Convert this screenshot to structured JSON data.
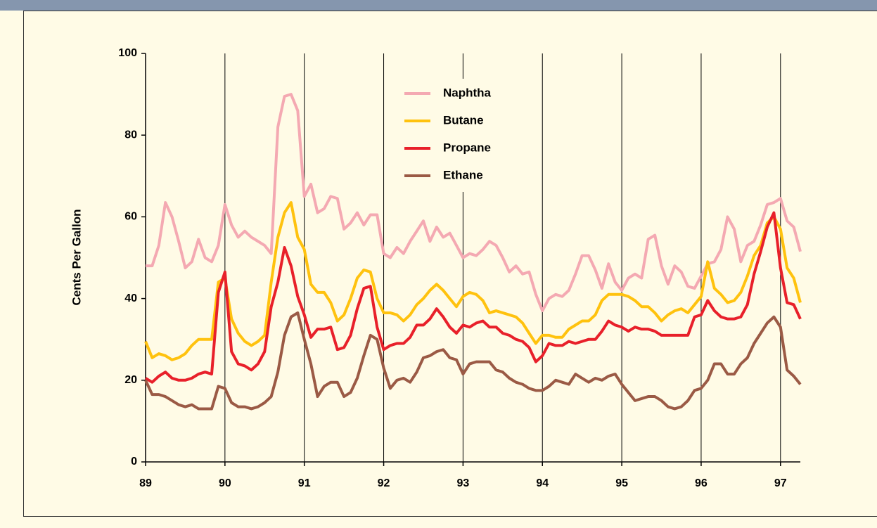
{
  "chart_data": {
    "type": "line",
    "y_label": "Cents Per Gallon",
    "x": [
      89,
      89.083,
      89.167,
      89.25,
      89.333,
      89.417,
      89.5,
      89.583,
      89.667,
      89.75,
      89.833,
      89.917,
      90,
      90.083,
      90.167,
      90.25,
      90.333,
      90.417,
      90.5,
      90.583,
      90.667,
      90.75,
      90.833,
      90.917,
      91,
      91.083,
      91.167,
      91.25,
      91.333,
      91.417,
      91.5,
      91.583,
      91.667,
      91.75,
      91.833,
      91.917,
      92,
      92.083,
      92.167,
      92.25,
      92.333,
      92.417,
      92.5,
      92.583,
      92.667,
      92.75,
      92.833,
      92.917,
      93,
      93.083,
      93.167,
      93.25,
      93.333,
      93.417,
      93.5,
      93.583,
      93.667,
      93.75,
      93.833,
      93.917,
      94,
      94.083,
      94.167,
      94.25,
      94.333,
      94.417,
      94.5,
      94.583,
      94.667,
      94.75,
      94.833,
      94.917,
      95,
      95.083,
      95.167,
      95.25,
      95.333,
      95.417,
      95.5,
      95.583,
      95.667,
      95.75,
      95.833,
      95.917,
      96,
      96.083,
      96.167,
      96.25,
      96.333,
      96.417,
      96.5,
      96.583,
      96.667,
      96.75,
      96.833,
      96.917,
      97,
      97.083,
      97.167,
      97.25
    ],
    "series": [
      {
        "name": "Naphtha",
        "color": "#f4a9b2",
        "values": [
          48,
          48,
          53,
          63.5,
          60,
          54,
          47.5,
          49,
          54.5,
          50,
          49,
          53,
          63,
          58,
          55,
          56.5,
          55,
          54,
          53,
          51,
          82,
          89.5,
          90,
          86,
          65,
          68,
          61,
          62,
          65,
          64.5,
          57,
          58.5,
          61,
          58,
          60.5,
          60.5,
          51,
          50,
          52.5,
          51,
          54,
          56.5,
          59,
          54,
          57.5,
          55,
          56,
          53,
          50,
          51,
          50.5,
          52,
          54,
          53,
          50,
          46.5,
          48,
          46,
          46.5,
          41,
          37,
          40,
          41,
          40.5,
          42,
          46,
          50.5,
          50.5,
          47,
          42.5,
          48.5,
          44,
          42,
          45,
          46,
          45,
          54.5,
          55.5,
          48,
          43.5,
          48,
          46.5,
          43,
          42.5,
          45.5,
          48.5,
          49,
          52,
          60,
          57,
          49,
          53,
          54,
          58,
          63,
          63.5,
          64.5,
          59,
          57.5,
          51.5
        ]
      },
      {
        "name": "Butane",
        "color": "#ffc20e",
        "values": [
          29.5,
          25.5,
          26.5,
          26,
          25,
          25.5,
          26.5,
          28.5,
          30,
          30,
          30,
          44,
          45,
          35,
          31.5,
          29.5,
          28.5,
          29.5,
          31,
          44,
          55,
          61,
          63.5,
          55,
          52,
          43.5,
          41.5,
          41.5,
          39,
          34.5,
          36,
          40,
          45,
          47,
          46.5,
          40,
          36.5,
          36.5,
          36,
          34.5,
          36,
          38.5,
          40,
          42,
          43.5,
          42,
          40,
          38,
          40.5,
          41.5,
          41,
          39.5,
          36.5,
          37,
          36.5,
          36,
          35.5,
          34,
          31.5,
          29,
          31,
          31,
          30.5,
          30.5,
          32.5,
          33.5,
          34.5,
          34.5,
          36,
          39.5,
          41,
          41,
          41,
          40.5,
          39.5,
          38,
          38,
          36.5,
          34.5,
          36,
          37,
          37.5,
          36.5,
          38.5,
          40.5,
          49,
          42.5,
          41,
          39,
          39.5,
          41.5,
          45.5,
          50.5,
          53,
          58.5,
          60,
          57,
          47.5,
          45,
          39
        ]
      },
      {
        "name": "Propane",
        "color": "#e8202a",
        "values": [
          20.5,
          19.5,
          21,
          22,
          20.5,
          20,
          20,
          20.5,
          21.5,
          22,
          21.5,
          41.5,
          46.5,
          27,
          24,
          23.5,
          22.5,
          24,
          27,
          38,
          44,
          52.5,
          48,
          40.5,
          36,
          30.5,
          32.5,
          32.5,
          33,
          27.5,
          28,
          31,
          37.5,
          42.5,
          43,
          33,
          27.5,
          28.5,
          29,
          29,
          30.5,
          33.5,
          33.5,
          35,
          37.5,
          35.5,
          33,
          31.5,
          33.5,
          33,
          34,
          34.5,
          33,
          33,
          31.5,
          31,
          30,
          29.5,
          28,
          24.5,
          26,
          29,
          28.5,
          28.5,
          29.5,
          29,
          29.5,
          30,
          30,
          32,
          34.5,
          33.5,
          33,
          32,
          33,
          32.5,
          32.5,
          32,
          31,
          31,
          31,
          31,
          31,
          35.5,
          36,
          39.5,
          37,
          35.5,
          35,
          35,
          35.5,
          38.5,
          46,
          51.5,
          57.5,
          61,
          47.5,
          39,
          38.5,
          35
        ]
      },
      {
        "name": "Ethane",
        "color": "#9b5a45",
        "values": [
          20,
          16.5,
          16.5,
          16,
          15,
          14,
          13.5,
          14,
          13,
          13,
          13,
          18.5,
          18,
          14.5,
          13.5,
          13.5,
          13,
          13.5,
          14.5,
          16,
          22,
          31,
          35.5,
          36.5,
          30,
          24,
          16,
          18.5,
          19.5,
          19.5,
          16,
          17,
          20.5,
          26,
          31,
          30,
          23,
          18,
          20,
          20.5,
          19.5,
          22,
          25.5,
          26,
          27,
          27.5,
          25.5,
          25,
          21.5,
          24,
          24.5,
          24.5,
          24.5,
          22.5,
          22,
          20.5,
          19.5,
          19,
          18,
          17.5,
          17.5,
          18.5,
          20,
          19.5,
          19,
          21.5,
          20.5,
          19.5,
          20.5,
          20,
          21,
          21.5,
          19,
          17,
          15,
          15.5,
          16,
          16,
          15,
          13.5,
          13,
          13.5,
          15,
          17.5,
          18,
          20,
          24,
          24,
          21.5,
          21.5,
          24,
          25.5,
          29,
          31.5,
          34,
          35.5,
          33,
          22.5,
          21,
          19
        ]
      }
    ],
    "xlim": [
      89,
      97.25
    ],
    "xticks": [
      89,
      90,
      91,
      92,
      93,
      94,
      95,
      96,
      97
    ],
    "ylim": [
      0,
      100
    ],
    "yticks": [
      0,
      20,
      40,
      60,
      80,
      100
    ],
    "grid": "x",
    "legend": "top-center"
  }
}
